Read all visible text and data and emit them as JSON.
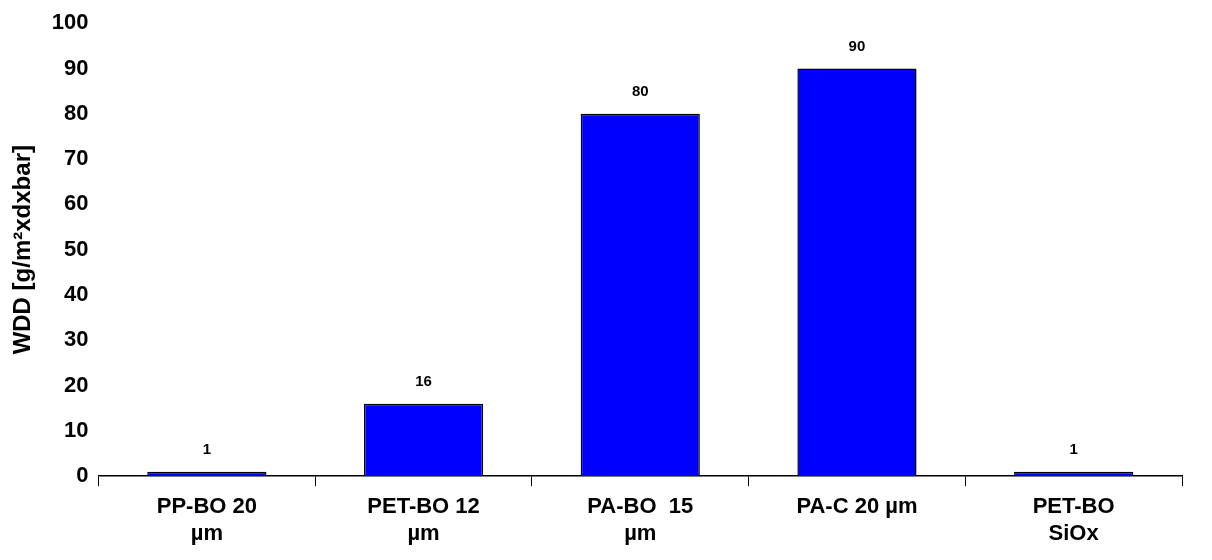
{
  "chart_data": {
    "type": "bar",
    "ylabel": "WDD [g/m²xdxbar]",
    "categories": [
      "PP-BO 20 µm",
      "PET-BO 12 µm",
      "PA-BO  15 µm",
      "PA-C 20 µm",
      "PET-BO SiOx"
    ],
    "values": [
      1,
      16,
      80,
      90,
      1
    ],
    "color": "#0000ff",
    "ylim": [
      0,
      100
    ],
    "yticks": [
      0,
      10,
      20,
      30,
      40,
      50,
      60,
      70,
      80,
      90,
      100
    ],
    "grid": false,
    "legend": false,
    "data_labels": true
  }
}
